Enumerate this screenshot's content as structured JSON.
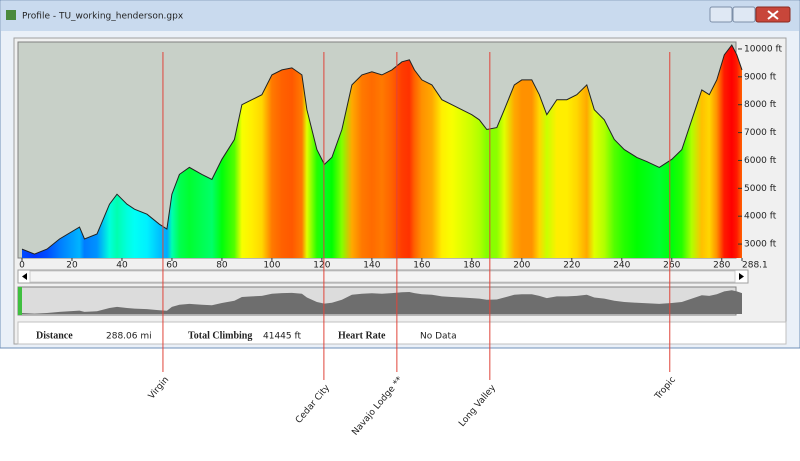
{
  "window": {
    "title": "Profile - TU_working_henderson.gpx"
  },
  "chart_data": {
    "type": "area",
    "x": [
      0,
      5,
      10,
      15,
      23,
      25,
      30,
      35,
      38,
      42,
      45,
      50,
      55,
      58,
      60,
      63,
      67,
      72,
      76,
      80,
      85,
      88,
      92,
      96,
      100,
      104,
      108,
      112,
      114,
      118,
      121,
      124,
      128,
      132,
      136,
      140,
      144,
      148,
      152,
      155,
      157,
      160,
      164,
      168,
      172,
      176,
      180,
      183,
      186,
      190,
      193,
      197,
      200,
      204,
      207,
      210,
      214,
      218,
      222,
      226,
      229,
      233,
      237,
      241,
      246,
      250,
      255,
      260,
      264,
      268,
      272,
      275,
      278,
      281,
      284,
      286,
      288.1
    ],
    "values": [
      2820,
      2640,
      2820,
      3180,
      3610,
      3180,
      3360,
      4430,
      4790,
      4430,
      4250,
      4070,
      3710,
      3540,
      4790,
      5500,
      5750,
      5500,
      5320,
      6040,
      6750,
      8000,
      8180,
      8360,
      9070,
      9250,
      9320,
      9070,
      7820,
      6390,
      5860,
      6110,
      7110,
      8710,
      9070,
      9180,
      9070,
      9250,
      9540,
      9610,
      9250,
      8890,
      8710,
      8180,
      8000,
      7820,
      7640,
      7460,
      7110,
      7180,
      7820,
      8710,
      8890,
      8890,
      8360,
      7640,
      8180,
      8180,
      8360,
      8710,
      7820,
      7460,
      6750,
      6390,
      6110,
      5960,
      5750,
      6040,
      6390,
      7460,
      8530,
      8360,
      8890,
      9790,
      10140,
      9790,
      9250
    ],
    "xlim": [
      0,
      288.1
    ],
    "xticks": [
      0,
      20,
      40,
      60,
      80,
      100,
      120,
      140,
      160,
      180,
      200,
      220,
      240,
      260,
      280,
      288.1
    ],
    "ylim": [
      2500,
      10250
    ],
    "yticks": [
      {
        "value": 3000,
        "label": "3000 ft"
      },
      {
        "value": 4000,
        "label": "4000 ft"
      },
      {
        "value": 5000,
        "label": "5000 ft"
      },
      {
        "value": 6000,
        "label": "6000 ft"
      },
      {
        "value": 7000,
        "label": "7000 ft"
      },
      {
        "value": 8000,
        "label": "8000 ft"
      },
      {
        "value": 9000,
        "label": "9000 ft"
      },
      {
        "value": 10000,
        "label": "10000 ft"
      }
    ],
    "annotations": [
      {
        "x": 56.4,
        "text": "Virgin"
      },
      {
        "x": 120.8,
        "text": "Cedar City"
      },
      {
        "x": 150,
        "text": "Navajo Lodge **"
      },
      {
        "x": 187.2,
        "text": "Long Valley"
      },
      {
        "x": 259.2,
        "text": "Tropic"
      }
    ]
  },
  "stats": [
    {
      "label": "Distance",
      "value": "288.06 mi"
    },
    {
      "label": "Total Climbing",
      "value": "41445 ft"
    },
    {
      "label": "Heart Rate",
      "value": "No Data"
    }
  ]
}
